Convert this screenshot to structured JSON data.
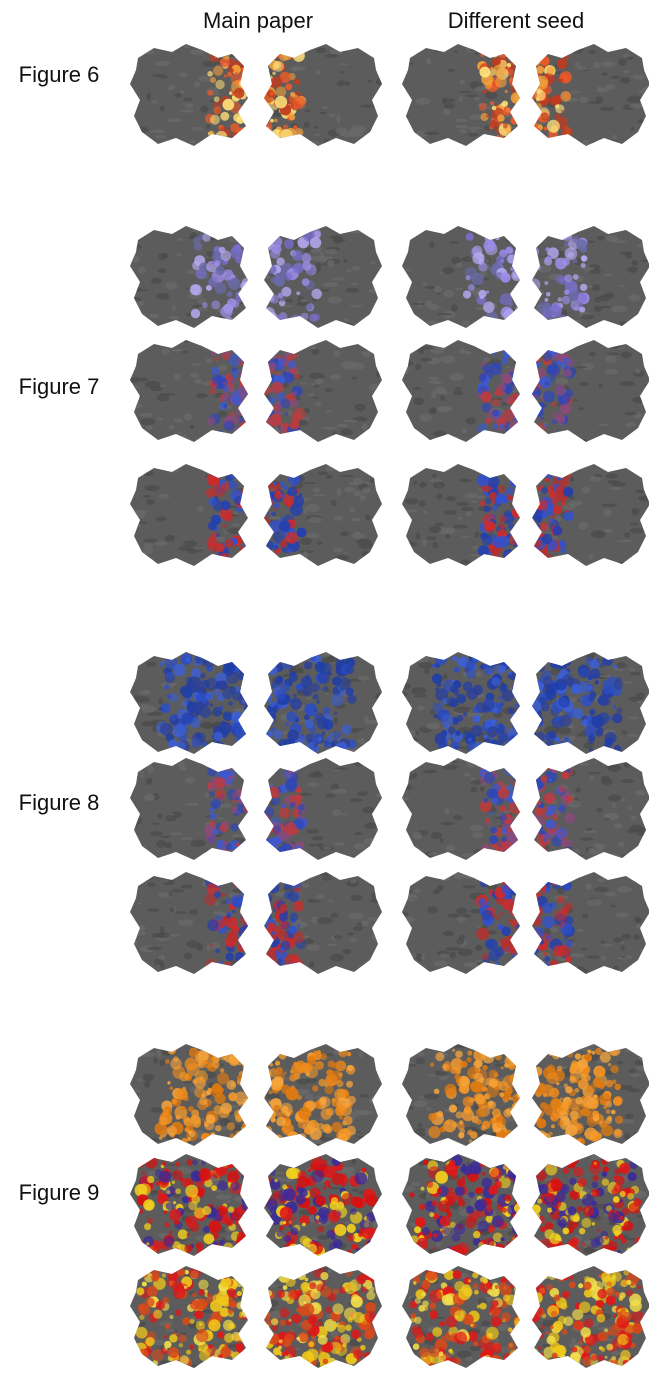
{
  "columns": [
    "Main paper",
    "Different seed"
  ],
  "figures": [
    {
      "label": "Figure 6",
      "rows": [
        {
          "style": "hot"
        }
      ]
    },
    {
      "label": "Figure 7",
      "rows": [
        {
          "style": "violet"
        },
        {
          "style": "blue-red"
        },
        {
          "style": "blue-red-strong"
        }
      ]
    },
    {
      "label": "Figure 8",
      "rows": [
        {
          "style": "blue-full"
        },
        {
          "style": "blue-red"
        },
        {
          "style": "blue-red-strong"
        }
      ]
    },
    {
      "label": "Figure 9",
      "rows": [
        {
          "style": "orange"
        },
        {
          "style": "red-yellow"
        },
        {
          "style": "red-yellow-mixed"
        }
      ]
    }
  ],
  "palettes": {
    "cortex": "#5c5c5c",
    "hot": [
      "#f05a28",
      "#f7a23a",
      "#fde07a",
      "#c23b1e"
    ],
    "violet": [
      "#7a6fd0",
      "#9c8ce6",
      "#b7a9f2",
      "#6a6aa8"
    ],
    "blue-red": [
      "#2f46b8",
      "#3a59d6",
      "#c03a3a",
      "#8a4a7a"
    ],
    "blue-red-strong": [
      "#2340b0",
      "#3151cf",
      "#d12a2a",
      "#b53030"
    ],
    "blue-full": [
      "#1f3ea8",
      "#2c4ec6",
      "#3b5fd8",
      "#2a3f9c"
    ],
    "orange": [
      "#f08a1a",
      "#f59a2a",
      "#e07a10",
      "#f7a53c"
    ],
    "red-yellow": [
      "#e01818",
      "#d81010",
      "#f2d21e",
      "#3b2a9a"
    ],
    "red-yellow-mixed": [
      "#e01818",
      "#f0c81a",
      "#d84a1a",
      "#f4e04a"
    ]
  }
}
